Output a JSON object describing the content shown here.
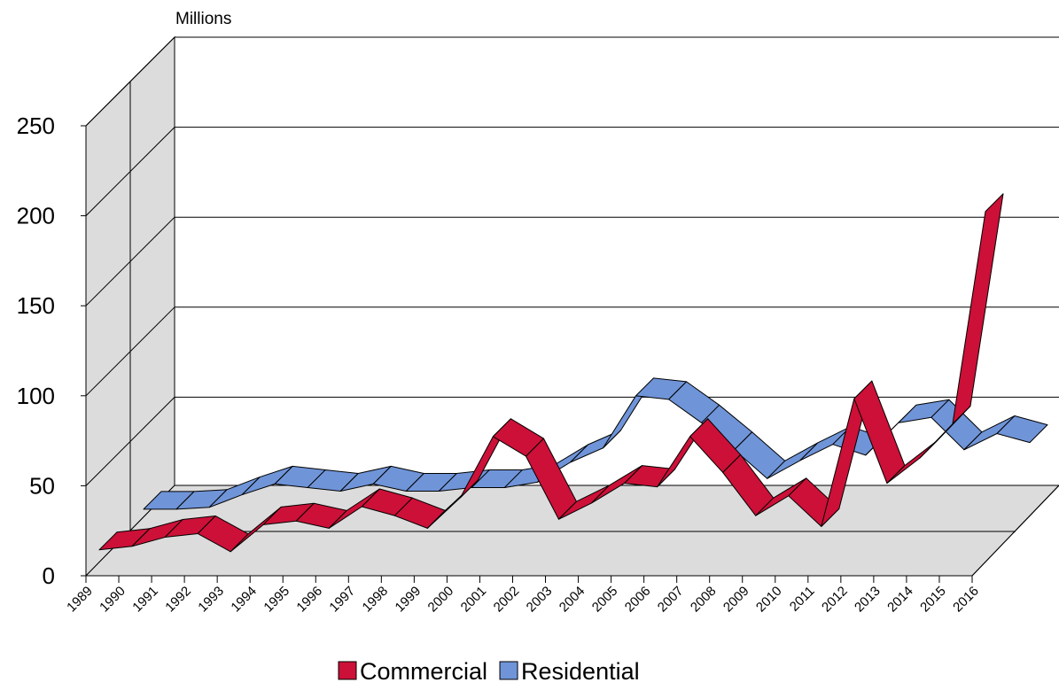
{
  "chart_data": {
    "type": "line3d",
    "y_axis_label": "Millions",
    "categories": [
      "1989",
      "1990",
      "1991",
      "1992",
      "1993",
      "1994",
      "1995",
      "1996",
      "1997",
      "1998",
      "1999",
      "2000",
      "2001",
      "2002",
      "2003",
      "2004",
      "2005",
      "2006",
      "2007",
      "2008",
      "2009",
      "2010",
      "2011",
      "2012",
      "2013",
      "2014",
      "2015",
      "2016"
    ],
    "series": [
      {
        "name": "Commercial",
        "color": "#cc1038",
        "values": [
          7,
          9,
          14,
          16,
          6,
          21,
          23,
          19,
          31,
          26,
          19,
          36,
          70,
          59,
          24,
          33,
          44,
          42,
          70,
          50,
          26,
          37,
          20,
          91,
          44,
          58,
          77,
          195
        ]
      },
      {
        "name": "Residential",
        "color": "#6f94d8",
        "values": [
          5,
          5,
          6,
          13,
          19,
          17,
          15,
          19,
          15,
          15,
          17,
          17,
          20,
          31,
          39,
          68,
          66,
          53,
          38,
          22,
          32,
          41,
          35,
          53,
          56,
          38,
          47,
          42
        ]
      }
    ],
    "ylim": [
      0,
      250
    ],
    "yticks": [
      0,
      50,
      100,
      150,
      200,
      250
    ],
    "grid": true,
    "legend": "bottom"
  }
}
